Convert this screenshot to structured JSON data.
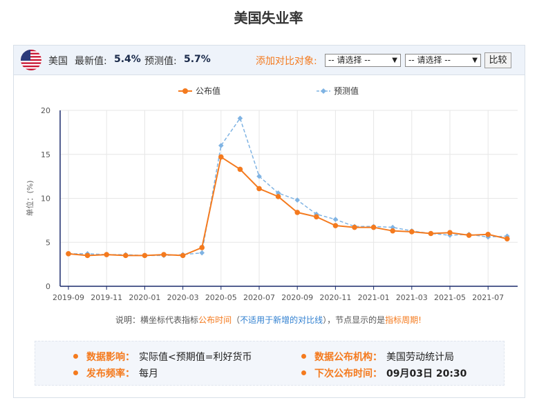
{
  "page": {
    "title": "美国失业率"
  },
  "header": {
    "country": "美国",
    "latest_label": "最新值:",
    "latest_value": "5.4%",
    "forecast_label": "预测值:",
    "forecast_value": "5.7%",
    "compare_label": "添加对比对象:",
    "select1": "-- 请选择 --",
    "select2": "-- 请选择 --",
    "compare_button": "比较"
  },
  "note": {
    "p1": "说明：横坐标代表指标",
    "p2": "公布时间",
    "p3": "（",
    "p4": "不适用于新增的对比线",
    "p5": "），节点显示的是",
    "p6": "指标周期",
    "p7": "!"
  },
  "info": {
    "impact_label": "数据影响：",
    "impact_value": "实际值<预期值=利好货币",
    "freq_label": "发布频率：",
    "freq_value": "每月",
    "agency_label": "数据公布机构：",
    "agency_value": "美国劳动统计局",
    "next_label": "下次公布时间：",
    "next_value": "09月03日 20:30"
  },
  "colors": {
    "actual": "#f47a1e",
    "forecast": "#7fb3e3",
    "axis": "#1a2a6c",
    "grid": "#e6e6e6"
  },
  "chart_data": {
    "type": "line",
    "ylabel": "单位：(%)",
    "ylim": [
      0,
      20
    ],
    "yticks": [
      0,
      5,
      10,
      15,
      20
    ],
    "x": [
      "2019-09",
      "2019-10",
      "2019-11",
      "2019-12",
      "2020-01",
      "2020-02",
      "2020-03",
      "2020-04",
      "2020-05",
      "2020-06",
      "2020-07",
      "2020-08",
      "2020-09",
      "2020-10",
      "2020-11",
      "2020-12",
      "2021-01",
      "2021-02",
      "2021-03",
      "2021-04",
      "2021-05",
      "2021-06",
      "2021-07",
      "2021-08"
    ],
    "xticks": [
      "2019-09",
      "2019-11",
      "2020-01",
      "2020-03",
      "2020-05",
      "2020-07",
      "2020-09",
      "2020-11",
      "2021-01",
      "2021-03",
      "2021-05",
      "2021-07"
    ],
    "series": [
      {
        "name": "公布值",
        "values": [
          3.7,
          3.5,
          3.6,
          3.5,
          3.5,
          3.6,
          3.5,
          4.4,
          14.7,
          13.3,
          11.1,
          10.2,
          8.4,
          7.9,
          6.9,
          6.7,
          6.7,
          6.3,
          6.2,
          6.0,
          6.1,
          5.8,
          5.9,
          5.4
        ]
      },
      {
        "name": "预测值",
        "values": [
          3.7,
          3.7,
          3.6,
          3.6,
          3.5,
          3.5,
          3.6,
          3.8,
          16.0,
          19.1,
          12.5,
          10.6,
          9.8,
          8.2,
          7.6,
          6.8,
          6.8,
          6.7,
          6.3,
          6.0,
          5.8,
          5.9,
          5.6,
          5.7
        ]
      }
    ],
    "legend": "top",
    "grid": true
  }
}
